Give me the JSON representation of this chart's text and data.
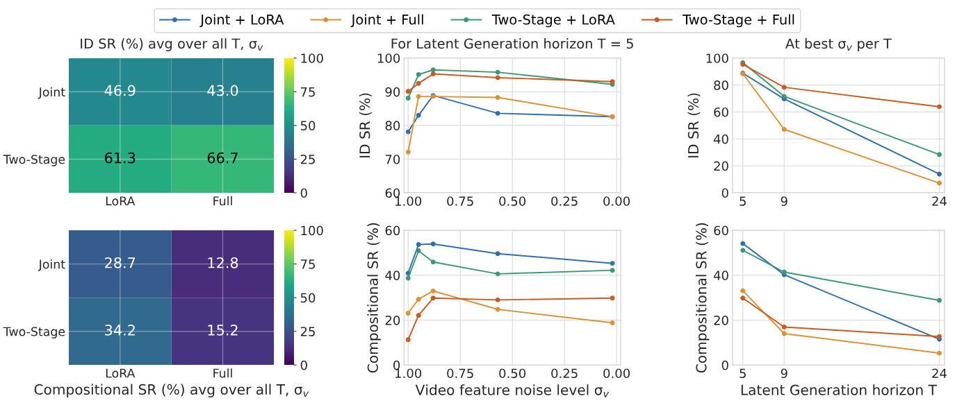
{
  "chart_data": [
    {
      "type": "heatmap",
      "title": "ID SR (%) avg over all T, σ$_{v}$",
      "categories": [
        "LoRA",
        "Full"
      ],
      "y_categories": [
        "Joint",
        "Two-Stage"
      ],
      "cells": [
        [
          46.9,
          43.0
        ],
        [
          61.3,
          66.7
        ]
      ],
      "data_labels": true,
      "cell_labels": [
        [
          "46.9",
          "43.0"
        ],
        [
          "61.3",
          "66.7"
        ]
      ],
      "clim": [
        0,
        100
      ],
      "cticks": [
        0,
        25,
        50,
        75,
        100
      ],
      "grid": true
    },
    {
      "type": "line",
      "title": "For Latent Generation horizon T = 5",
      "ylabel": "ID SR (%)",
      "x": [
        1.0,
        0.95,
        0.88,
        0.57,
        0.02
      ],
      "xlim": [
        1.02,
        -0.02
      ],
      "xticks": [
        {
          "value": 1.0,
          "label": "1.00"
        },
        0.75,
        {
          "value": 0.5,
          "label": "0.50"
        },
        0.25,
        {
          "value": 0.0,
          "label": "0.00"
        }
      ],
      "ylim": [
        60,
        100
      ],
      "yticks": [
        60,
        70,
        80,
        90,
        100
      ],
      "grid": true,
      "marker": "circle",
      "line_style": "solid",
      "legend": "top",
      "series": [
        {
          "name": "Joint + LoRA",
          "color": "#2f6fb1",
          "values": [
            78.1,
            83.0,
            88.9,
            83.6,
            82.6
          ]
        },
        {
          "name": "Joint + Full",
          "color": "#dc9233",
          "values": [
            72.1,
            88.6,
            88.6,
            88.3,
            82.6
          ]
        },
        {
          "name": "Two-Stage + LoRA",
          "color": "#3a9a74",
          "values": [
            88.1,
            95.1,
            96.5,
            95.8,
            92.2
          ]
        },
        {
          "name": "Two-Stage + Full",
          "color": "#cc5a1f",
          "values": [
            90.1,
            92.5,
            95.3,
            94.2,
            93.0
          ]
        }
      ]
    },
    {
      "type": "line",
      "title": "At best σ$_{v}$ per T",
      "ylabel": "ID SR (%)",
      "x": [
        5,
        9,
        24
      ],
      "xlim": [
        4,
        24.5
      ],
      "xticks": [
        5,
        9,
        24
      ],
      "ylim": [
        0,
        100
      ],
      "yticks": [
        0,
        20,
        40,
        60,
        80,
        100
      ],
      "grid": true,
      "marker": "circle",
      "line_style": "solid",
      "series": [
        {
          "color": "#2f6fb1",
          "values": [
            88.8,
            69.7,
            13.9
          ]
        },
        {
          "color": "#dc9233",
          "values": [
            88.4,
            47.1,
            7.2
          ]
        },
        {
          "color": "#3a9a74",
          "values": [
            96.6,
            71.6,
            28.4
          ]
        },
        {
          "color": "#cc5a1f",
          "values": [
            95.3,
            78.3,
            63.9
          ]
        }
      ]
    },
    {
      "type": "heatmap",
      "xlabel": "Compositional SR (%) avg over all T, σ$_{v}$",
      "categories": [
        "LoRA",
        "Full"
      ],
      "y_categories": [
        "Joint",
        "Two-Stage"
      ],
      "cells": [
        [
          28.7,
          12.8
        ],
        [
          34.2,
          15.2
        ]
      ],
      "data_labels": true,
      "cell_labels": [
        [
          "28.7",
          "12.8"
        ],
        [
          "34.2",
          "15.2"
        ]
      ],
      "clim": [
        0,
        100
      ],
      "cticks": [
        0,
        25,
        50,
        75,
        100
      ],
      "grid": true
    },
    {
      "type": "line",
      "xlabel": "Video feature noise level σ$_{v}$",
      "ylabel": "Compositional SR (%)",
      "x": [
        1.0,
        0.95,
        0.88,
        0.57,
        0.02
      ],
      "xlim": [
        1.02,
        -0.02
      ],
      "xticks": [
        {
          "value": 1.0,
          "label": "1.00"
        },
        0.75,
        {
          "value": 0.5,
          "label": "0.50"
        },
        0.25,
        {
          "value": 0.0,
          "label": "0.00"
        }
      ],
      "ylim": [
        0,
        60
      ],
      "yticks": [
        0,
        20,
        40,
        60
      ],
      "grid": true,
      "marker": "circle",
      "line_style": "solid",
      "series": [
        {
          "color": "#2f6fb1",
          "values": [
            40.9,
            53.7,
            53.9,
            49.6,
            45.3
          ]
        },
        {
          "color": "#dc9233",
          "values": [
            23.1,
            29.3,
            33.0,
            24.8,
            18.8
          ]
        },
        {
          "color": "#3a9a74",
          "values": [
            38.7,
            50.9,
            45.9,
            40.6,
            42.2
          ]
        },
        {
          "color": "#cc5a1f",
          "values": [
            11.3,
            22.1,
            29.8,
            29.0,
            29.8
          ]
        }
      ]
    },
    {
      "type": "line",
      "xlabel": "Latent Generation horizon T",
      "ylabel": "Compositional SR (%)",
      "x": [
        5,
        9,
        24
      ],
      "xlim": [
        4,
        24.5
      ],
      "xticks": [
        5,
        9,
        24
      ],
      "ylim": [
        0,
        60
      ],
      "yticks": [
        0,
        20,
        40,
        60
      ],
      "grid": true,
      "marker": "circle",
      "line_style": "solid",
      "series": [
        {
          "color": "#2f6fb1",
          "values": [
            54.1,
            40.2,
            11.5
          ]
        },
        {
          "color": "#dc9233",
          "values": [
            33.1,
            14.0,
            5.3
          ]
        },
        {
          "color": "#3a9a74",
          "values": [
            51.1,
            41.4,
            28.8
          ]
        },
        {
          "color": "#cc5a1f",
          "values": [
            29.8,
            16.9,
            12.7
          ]
        }
      ]
    }
  ]
}
